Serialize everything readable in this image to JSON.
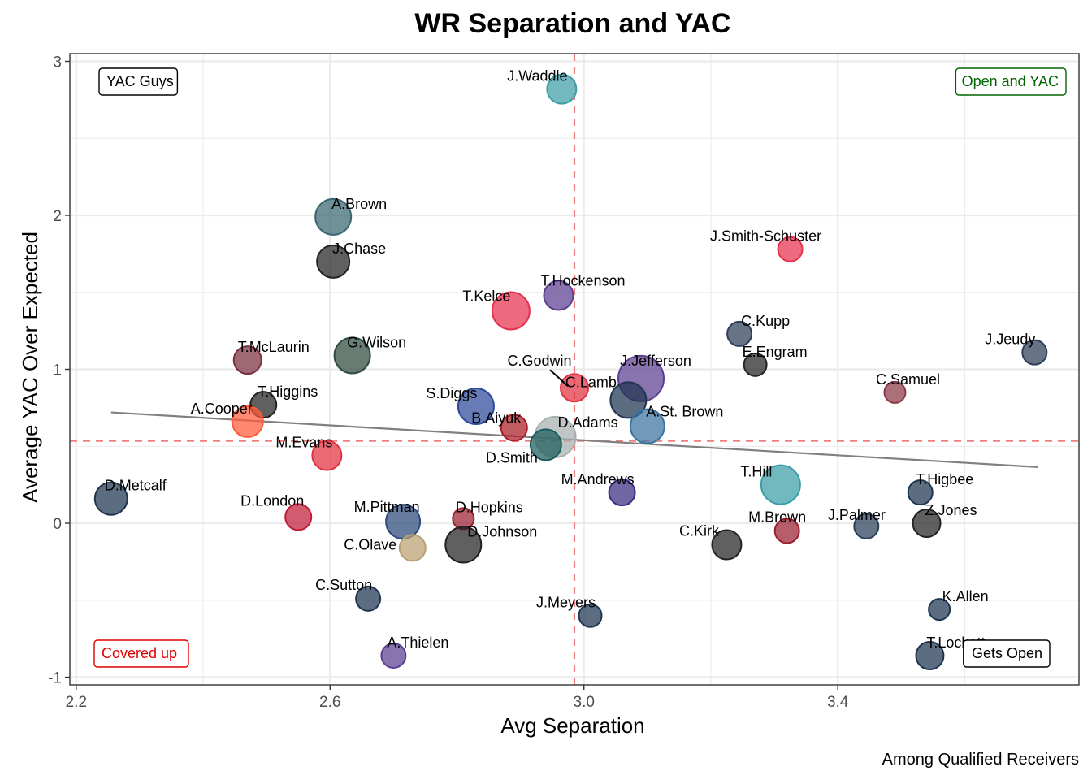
{
  "chart_data": {
    "type": "scatter",
    "title": "WR Separation and YAC",
    "xlabel": "Avg Separation",
    "ylabel": "Average YAC Over Expected",
    "caption": "Among Qualified Receivers",
    "xlim": [
      2.19,
      3.78
    ],
    "ylim": [
      -1.05,
      3.05
    ],
    "x_ticks": [
      2.2,
      2.6,
      3.0,
      3.4
    ],
    "x_tick_labels": [
      "2.2",
      "2.6",
      "3.0",
      "3.4"
    ],
    "y_ticks": [
      -1,
      0,
      1,
      2,
      3
    ],
    "y_tick_labels": [
      "-1",
      "0",
      "1",
      "2",
      "3"
    ],
    "grid": true,
    "reference_lines": {
      "x_mean": 2.985,
      "y_mean": 0.535,
      "style": "dashed",
      "color": "#f08080"
    },
    "trend_line": {
      "x": [
        2.255,
        3.715
      ],
      "y": [
        0.72,
        0.365
      ],
      "color": "#808080"
    },
    "quadrant_labels": [
      {
        "text": "YAC Guys",
        "position": "top-left",
        "color": "#000000"
      },
      {
        "text": "Open and YAC",
        "position": "top-right",
        "color": "#006400"
      },
      {
        "text": "Covered up",
        "position": "bottom-left",
        "color": "#e00000"
      },
      {
        "text": "Gets Open",
        "position": "bottom-right",
        "color": "#000000"
      }
    ],
    "points": [
      {
        "name": "J.Waddle",
        "x": 2.965,
        "y": 2.82,
        "r": 18,
        "color": "#3f9ea6"
      },
      {
        "name": "A.Brown",
        "x": 2.605,
        "y": 1.99,
        "r": 22,
        "color": "#3a6670"
      },
      {
        "name": "J.Chase",
        "x": 2.605,
        "y": 1.7,
        "r": 20,
        "color": "#222222"
      },
      {
        "name": "J.Smith-Schuster",
        "x": 3.325,
        "y": 1.78,
        "r": 15,
        "color": "#e8304e"
      },
      {
        "name": "T.Hockenson",
        "x": 2.96,
        "y": 1.48,
        "r": 18,
        "color": "#5d3f90"
      },
      {
        "name": "T.Kelce",
        "x": 2.885,
        "y": 1.38,
        "r": 23,
        "color": "#e8304e"
      },
      {
        "name": "C.Kupp",
        "x": 3.245,
        "y": 1.23,
        "r": 15,
        "color": "#2e3f58"
      },
      {
        "name": "J.Jeudy",
        "x": 3.71,
        "y": 1.11,
        "r": 15,
        "color": "#2e3f58"
      },
      {
        "name": "T.McLaurin",
        "x": 2.47,
        "y": 1.06,
        "r": 17,
        "color": "#7a3040"
      },
      {
        "name": "G.Wilson",
        "x": 2.635,
        "y": 1.09,
        "r": 22,
        "color": "#2f4a3e"
      },
      {
        "name": "E.Engram",
        "x": 3.27,
        "y": 1.03,
        "r": 14,
        "color": "#222222"
      },
      {
        "name": "J.Jefferson",
        "x": 3.09,
        "y": 0.94,
        "r": 28,
        "color": "#5d3f90"
      },
      {
        "name": "C.Samuel",
        "x": 3.49,
        "y": 0.85,
        "r": 13,
        "color": "#8a3a48"
      },
      {
        "name": "C.Godwin",
        "x": 2.985,
        "y": 0.88,
        "r": 17,
        "color": "#e23040"
      },
      {
        "name": "C.Lamb",
        "x": 3.07,
        "y": 0.8,
        "r": 22,
        "color": "#1f3550"
      },
      {
        "name": "T.Higgins",
        "x": 2.495,
        "y": 0.77,
        "r": 16,
        "color": "#222222"
      },
      {
        "name": "S.Diggs",
        "x": 2.83,
        "y": 0.76,
        "r": 22,
        "color": "#2c4a9a"
      },
      {
        "name": "A.St. Brown",
        "x": 3.1,
        "y": 0.63,
        "r": 21,
        "color": "#3a72a0"
      },
      {
        "name": "A.Cooper",
        "x": 2.47,
        "y": 0.66,
        "r": 19,
        "color": "#ff5a3a"
      },
      {
        "name": "B.Aiyuk",
        "x": 2.89,
        "y": 0.62,
        "r": 16,
        "color": "#aa1c26"
      },
      {
        "name": "D.Adams",
        "x": 2.955,
        "y": 0.56,
        "r": 25,
        "color": "#a8b0b0"
      },
      {
        "name": "D.Smith",
        "x": 2.94,
        "y": 0.51,
        "r": 19,
        "color": "#1c5c5c"
      },
      {
        "name": "M.Evans",
        "x": 2.595,
        "y": 0.44,
        "r": 18,
        "color": "#e23040"
      },
      {
        "name": "T.Hill",
        "x": 3.31,
        "y": 0.25,
        "r": 24,
        "color": "#3a9ea6"
      },
      {
        "name": "D.Metcalf",
        "x": 2.255,
        "y": 0.16,
        "r": 20,
        "color": "#1f3550"
      },
      {
        "name": "T.Higbee",
        "x": 3.53,
        "y": 0.2,
        "r": 15,
        "color": "#1f3550"
      },
      {
        "name": "M.Andrews",
        "x": 3.06,
        "y": 0.2,
        "r": 16,
        "color": "#3a2a80"
      },
      {
        "name": "D.London",
        "x": 2.55,
        "y": 0.04,
        "r": 16,
        "color": "#c01c38"
      },
      {
        "name": "D.Hopkins",
        "x": 2.81,
        "y": 0.03,
        "r": 13,
        "color": "#9a2030"
      },
      {
        "name": "M.Pittman",
        "x": 2.715,
        "y": 0.01,
        "r": 21,
        "color": "#2a4a7a"
      },
      {
        "name": "J.Palmer",
        "x": 3.445,
        "y": -0.02,
        "r": 15,
        "color": "#2a3f58"
      },
      {
        "name": "Z.Jones",
        "x": 3.54,
        "y": 0.0,
        "r": 17,
        "color": "#222222"
      },
      {
        "name": "M.Brown",
        "x": 3.32,
        "y": -0.05,
        "r": 15,
        "color": "#9a2030"
      },
      {
        "name": "D.Johnson",
        "x": 2.81,
        "y": -0.14,
        "r": 22,
        "color": "#222222"
      },
      {
        "name": "C.Kirk",
        "x": 3.225,
        "y": -0.14,
        "r": 18,
        "color": "#222222"
      },
      {
        "name": "C.Olave",
        "x": 2.73,
        "y": -0.16,
        "r": 16,
        "color": "#b8a070"
      },
      {
        "name": "C.Sutton",
        "x": 2.66,
        "y": -0.49,
        "r": 15,
        "color": "#1f3550"
      },
      {
        "name": "J.Meyers",
        "x": 3.01,
        "y": -0.6,
        "r": 14,
        "color": "#1f3550"
      },
      {
        "name": "K.Allen",
        "x": 3.56,
        "y": -0.56,
        "r": 13,
        "color": "#1f3550"
      },
      {
        "name": "A.Thielen",
        "x": 2.7,
        "y": -0.86,
        "r": 15,
        "color": "#5d3f90"
      },
      {
        "name": "T.Lockett",
        "x": 3.545,
        "y": -0.86,
        "r": 17,
        "color": "#1f3550"
      }
    ]
  }
}
